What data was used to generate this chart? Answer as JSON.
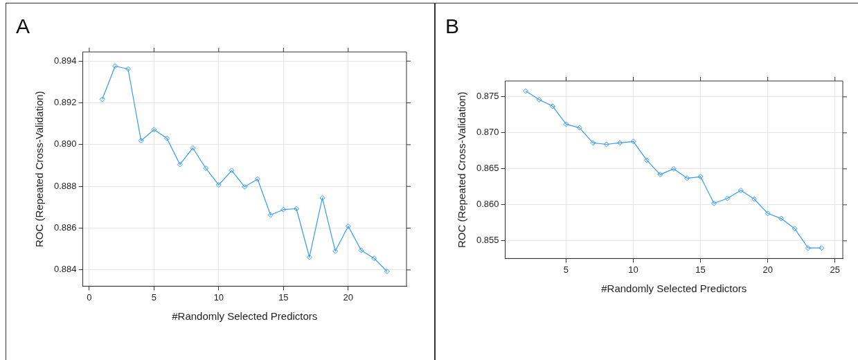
{
  "chart_data": [
    {
      "type": "line",
      "title": "A",
      "xlabel": "#Randomly Selected Predictors",
      "ylabel": "ROC (Repeated Cross-Validation)",
      "marker": "diamond",
      "grid": true,
      "xlim": [
        -0.5,
        24.5
      ],
      "xticks": [
        0,
        5,
        10,
        15,
        20
      ],
      "ylim": [
        0.88322,
        0.89444
      ],
      "yticks": [
        0.884,
        0.886,
        0.888,
        {
          "value": 0.89,
          "label": "0.890"
        },
        0.892,
        0.894
      ],
      "series": [
        {
          "color": "#3399ff",
          "x": [
            1,
            2,
            3,
            4,
            5,
            6,
            7,
            8,
            9,
            10,
            11,
            12,
            13,
            14,
            15,
            16,
            17,
            18,
            19,
            20,
            21,
            22,
            23
          ],
          "values": [
            0.89217,
            0.89376,
            0.89362,
            0.89019,
            0.89072,
            0.8903,
            0.88905,
            0.88984,
            0.88887,
            0.88807,
            0.88876,
            0.88798,
            0.88835,
            0.88663,
            0.88689,
            0.88693,
            0.88461,
            0.88745,
            0.8849,
            0.88609,
            0.88494,
            0.88455,
            0.88393
          ]
        }
      ]
    },
    {
      "type": "line",
      "title": "B",
      "xlabel": "#Randomly Selected Predictors",
      "ylabel": "ROC (Repeated Cross-Validation)",
      "marker": "diamond",
      "grid": true,
      "xlim": [
        0.47,
        25.58
      ],
      "xticks": [
        5,
        10,
        15,
        20,
        25
      ],
      "ylim": [
        0.85254,
        0.8772
      ],
      "yticks": [
        0.855,
        {
          "value": 0.86,
          "label": "0.860"
        },
        0.865,
        {
          "value": 0.87,
          "label": "0.870"
        },
        0.875
      ],
      "series": [
        {
          "color": "#3399ff",
          "x": [
            2,
            3,
            4,
            5,
            6,
            7,
            8,
            9,
            10,
            11,
            12,
            13,
            14,
            15,
            16,
            17,
            18,
            19,
            20,
            21,
            22,
            23,
            24
          ],
          "values": [
            0.8758,
            0.8746,
            0.8737,
            0.8712,
            0.8707,
            0.8686,
            0.8684,
            0.8686,
            0.8688,
            0.8662,
            0.8642,
            0.865,
            0.8637,
            0.8639,
            0.8602,
            0.8609,
            0.862,
            0.8608,
            0.8588,
            0.8581,
            0.8567,
            0.854,
            0.854
          ]
        }
      ]
    }
  ]
}
